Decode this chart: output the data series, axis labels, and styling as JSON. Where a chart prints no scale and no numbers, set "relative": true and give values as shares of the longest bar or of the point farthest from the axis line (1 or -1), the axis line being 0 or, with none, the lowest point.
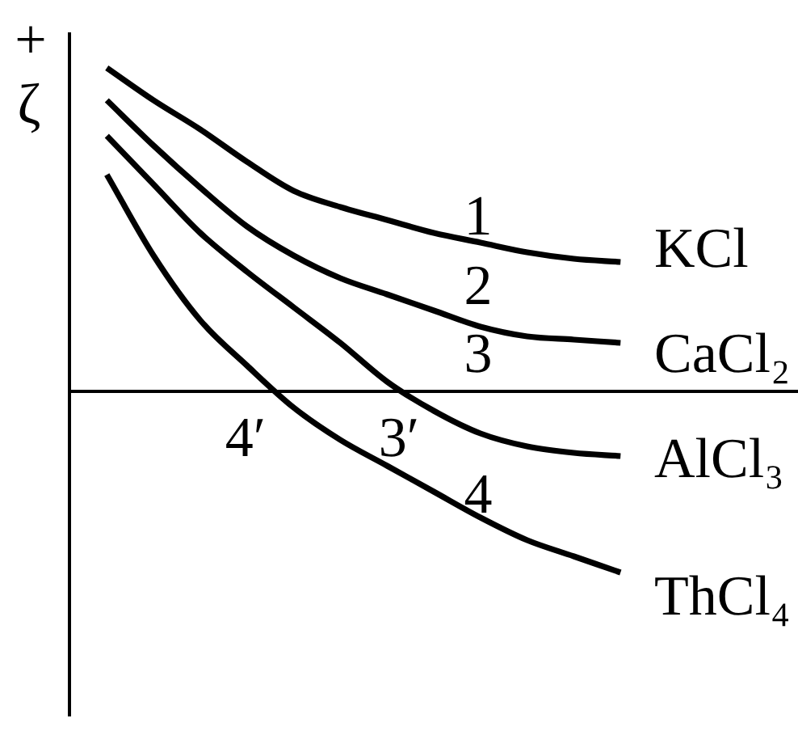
{
  "chart_data": {
    "type": "line",
    "relative": true,
    "ylabel": "ζ",
    "categories": [
      null,
      null,
      null,
      null,
      null,
      null,
      null,
      null,
      null,
      null,
      null,
      null
    ],
    "series": [
      {
        "name": "KCl",
        "color": "#000000",
        "values": [
          1,
          0.9,
          0.81,
          0.71,
          0.62,
          0.57,
          0.53,
          0.49,
          0.46,
          0.43,
          0.41,
          0.4
        ]
      },
      {
        "name": "CaCl₂",
        "color": "#000000",
        "values": [
          0.9,
          0.76,
          0.63,
          0.51,
          0.42,
          0.35,
          0.3,
          0.25,
          0.2,
          0.17,
          0.16,
          0.15
        ]
      },
      {
        "name": "AlCl₃",
        "color": "#000000",
        "values": [
          0.79,
          0.64,
          0.49,
          0.37,
          0.26,
          0.15,
          0.03,
          -0.06,
          -0.13,
          -0.17,
          -0.19,
          -0.2
        ]
      },
      {
        "name": "ThCl₄",
        "color": "#000000",
        "values": [
          0.67,
          0.42,
          0.22,
          0.08,
          -0.05,
          -0.15,
          -0.23,
          -0.31,
          -0.39,
          -0.46,
          -0.51,
          -0.56
        ]
      }
    ],
    "annotations": [
      "+",
      "1",
      "2",
      "3",
      "4",
      "4′",
      "3′"
    ]
  }
}
